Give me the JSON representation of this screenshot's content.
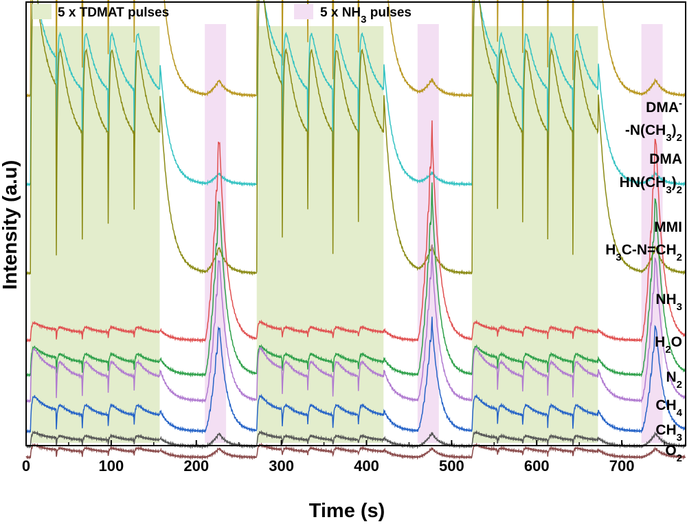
{
  "chart_data": {
    "type": "line",
    "title": "",
    "xlabel": "Time (s)",
    "ylabel": "Intensity (a.u)",
    "xlim": [
      0,
      775
    ],
    "xticks": [
      0,
      100,
      200,
      300,
      400,
      500,
      600,
      700
    ],
    "yticks": false,
    "grid": false,
    "legend": [
      {
        "key": "tdmat",
        "label": "5 x TDMAT pulses",
        "color": "#e3edcc"
      },
      {
        "key": "nh3",
        "label": "5 x NH",
        "sub": "3",
        "suffix": " pulses",
        "color": "#f3dff3"
      }
    ],
    "regions": [
      {
        "type": "tdmat",
        "start": 5,
        "end": 157
      },
      {
        "type": "nh3",
        "start": 210,
        "end": 235
      },
      {
        "type": "tdmat",
        "start": 271,
        "end": 420
      },
      {
        "type": "nh3",
        "start": 460,
        "end": 485
      },
      {
        "type": "tdmat",
        "start": 524,
        "end": 672
      },
      {
        "type": "nh3",
        "start": 723,
        "end": 748
      }
    ],
    "series": [
      {
        "name": "DMA",
        "label": [
          [
            "t",
            "DMA"
          ],
          [
            "sup",
            "-"
          ]
        ],
        "label2": [
          [
            "t",
            "-N(CH"
          ],
          [
            "sub",
            "3"
          ],
          [
            "t",
            ")"
          ],
          [
            "sub",
            "2"
          ]
        ],
        "color": "#b8961e",
        "baseline": 0.84,
        "peak": 0.72,
        "nh3_amp": 0.035,
        "tdmat_response": true,
        "nh3_response": false
      },
      {
        "name": "DMA HN(CH3)2",
        "label": [
          [
            "t",
            "DMA"
          ]
        ],
        "label2": [
          [
            "t",
            "HN(CH"
          ],
          [
            "sub",
            "3"
          ],
          [
            "t",
            ")"
          ],
          [
            "sub",
            "2"
          ]
        ],
        "color": "#33c2c2",
        "baseline": 0.635,
        "peak": 0.58,
        "nh3_amp": 0.025,
        "tdmat_response": true,
        "nh3_response": false
      },
      {
        "name": "MMI",
        "label": [
          [
            "t",
            "MMI"
          ]
        ],
        "label2": [
          [
            "t",
            "H"
          ],
          [
            "sub",
            "3"
          ],
          [
            "t",
            "C-N=CH"
          ],
          [
            "sub",
            "2"
          ]
        ],
        "color": "#8a8a14",
        "baseline": 0.43,
        "peak": 0.86,
        "nh3_amp": 0.06,
        "tdmat_response": true,
        "nh3_response": false
      },
      {
        "name": "NH3",
        "label": [
          [
            "t",
            "NH"
          ],
          [
            "sub",
            "3"
          ]
        ],
        "color": "#e05050",
        "baseline": 0.275,
        "peak": 0.05,
        "nh3_amp": 0.48,
        "tdmat_response": true,
        "nh3_response": true
      },
      {
        "name": "H2O",
        "label": [
          [
            "t",
            "H"
          ],
          [
            "sub",
            "2"
          ],
          [
            "t",
            "O"
          ]
        ],
        "color": "#2ea04a",
        "baseline": 0.195,
        "peak": 0.08,
        "nh3_amp": 0.42,
        "tdmat_response": true,
        "nh3_response": true
      },
      {
        "name": "N2",
        "label": [
          [
            "t",
            "N"
          ],
          [
            "sub",
            "2"
          ]
        ],
        "color": "#b07ad0",
        "baseline": 0.135,
        "peak": 0.15,
        "nh3_amp": 0.34,
        "tdmat_response": true,
        "nh3_response": true
      },
      {
        "name": "CH4",
        "label": [
          [
            "t",
            "CH"
          ],
          [
            "sub",
            "4"
          ]
        ],
        "color": "#2563c7",
        "baseline": 0.065,
        "peak": 0.1,
        "nh3_amp": 0.25,
        "tdmat_response": true,
        "nh3_response": true
      },
      {
        "name": "CH3",
        "label": [
          [
            "t",
            "CH"
          ],
          [
            "sub",
            "3"
          ]
        ],
        "color": "#555555",
        "baseline": 0.03,
        "peak": 0.04,
        "nh3_amp": 0.03,
        "tdmat_response": true,
        "nh3_response": true
      },
      {
        "name": "O2",
        "label": [
          [
            "t",
            "O"
          ],
          [
            "sub",
            "2"
          ]
        ],
        "color": "#8a4a4a",
        "baseline": 0.005,
        "peak": 0.035,
        "nh3_amp": 0.02,
        "tdmat_response": true,
        "nh3_response": true
      }
    ]
  }
}
